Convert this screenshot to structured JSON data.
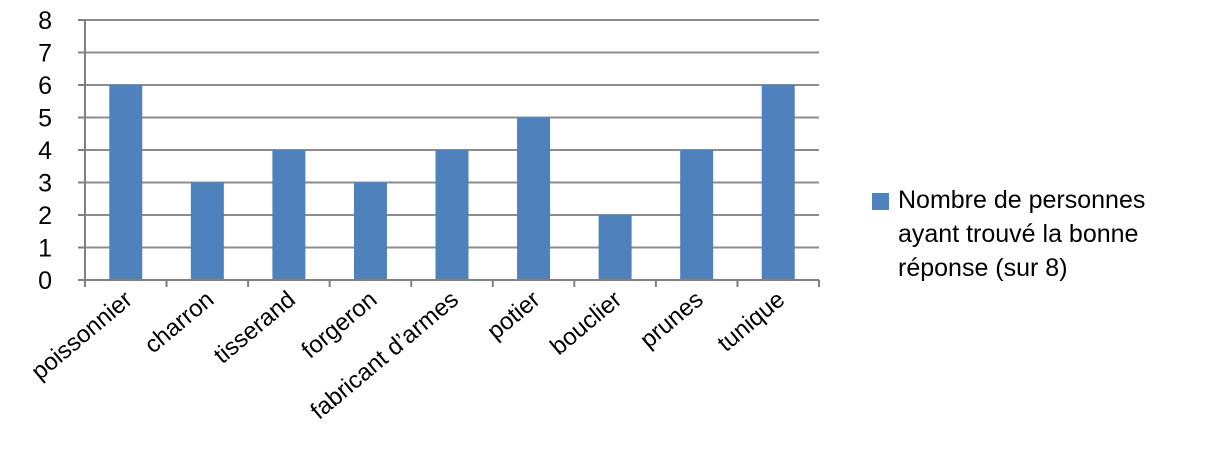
{
  "chart_data": {
    "type": "bar",
    "categories": [
      "poissonnier",
      "charron",
      "tisserand",
      "forgeron",
      "fabricant d’armes",
      "potier",
      "bouclier",
      "prunes",
      "tunique"
    ],
    "series": [
      {
        "name": "Nombre de personnes ayant trouvé la bonne réponse (sur 8)",
        "values": [
          6,
          3,
          4,
          3,
          4,
          5,
          2,
          4,
          6
        ]
      }
    ],
    "ylim": [
      0,
      8
    ],
    "yticks": [
      "0",
      "1",
      "2",
      "3",
      "4",
      "5",
      "6",
      "7",
      "8"
    ],
    "grid": true,
    "legend_position": "right",
    "colors": {
      "bar": "#4f81bd",
      "grid": "#8c8c8c",
      "axis": "#808080"
    }
  }
}
